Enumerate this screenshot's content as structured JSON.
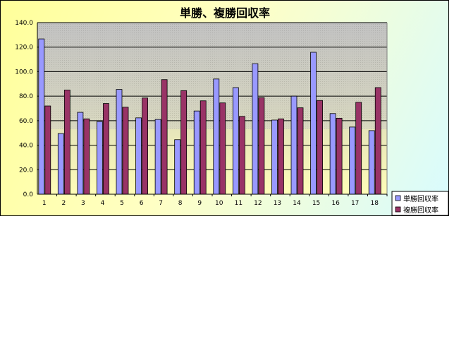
{
  "chart_data": {
    "type": "bar",
    "title": "単勝、複勝回収率",
    "xlabel": "",
    "ylabel": "",
    "categories": [
      "1",
      "2",
      "3",
      "4",
      "5",
      "6",
      "7",
      "8",
      "9",
      "10",
      "11",
      "12",
      "13",
      "14",
      "15",
      "16",
      "17",
      "18"
    ],
    "ylim": [
      0,
      140
    ],
    "yticks": [
      "0.0",
      "20.0",
      "40.0",
      "60.0",
      "80.0",
      "100.0",
      "120.0",
      "140.0"
    ],
    "grid": true,
    "legend_position": "bottom-right",
    "series": [
      {
        "name": "単勝回収率",
        "color": "#9999ff",
        "values": [
          126.7,
          49.5,
          66.8,
          59.3,
          85.5,
          62.3,
          61.0,
          44.5,
          67.9,
          94.0,
          87.0,
          106.5,
          60.5,
          80.0,
          115.8,
          65.8,
          54.8,
          51.9
        ]
      },
      {
        "name": "複勝回収率",
        "color": "#993366",
        "values": [
          72.0,
          85.0,
          61.5,
          74.0,
          71.0,
          78.5,
          93.5,
          84.5,
          76.2,
          74.5,
          63.5,
          78.8,
          61.5,
          70.5,
          76.5,
          62.0,
          75.0,
          87.0
        ]
      }
    ]
  }
}
